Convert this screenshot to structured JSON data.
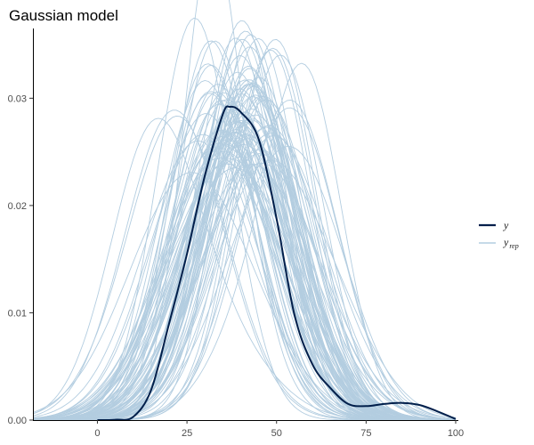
{
  "chart_data": {
    "type": "line",
    "title": "Gaussian model",
    "xlabel": "",
    "ylabel": "",
    "xlim": [
      -18,
      100
    ],
    "ylim": [
      0,
      0.0365
    ],
    "x_ticks": [
      0,
      25,
      50,
      75,
      100
    ],
    "x_tick_labels": [
      "0",
      "25",
      "50",
      "75",
      "100"
    ],
    "y_ticks": [
      0.0,
      0.01,
      0.02,
      0.03
    ],
    "y_tick_labels": [
      "0.00",
      "0.01",
      "0.02",
      "0.03"
    ],
    "grid": false,
    "legend_position": "right",
    "colors": {
      "y": "#011f4b",
      "y_rep": "#b3cde0"
    },
    "observed": {
      "name": "y",
      "x": [
        0,
        5,
        10,
        15,
        20,
        25,
        30,
        35,
        37,
        40,
        45,
        50,
        55,
        60,
        65,
        70,
        75,
        80,
        85,
        90,
        95,
        100
      ],
      "y": [
        0,
        3e-05,
        0.0003,
        0.0028,
        0.009,
        0.0155,
        0.0228,
        0.0285,
        0.0292,
        0.0287,
        0.0262,
        0.0188,
        0.0098,
        0.0052,
        0.003,
        0.0015,
        0.0013,
        0.0015,
        0.0016,
        0.0014,
        0.0008,
        0.0001
      ]
    },
    "replicated": {
      "name": "y_rep",
      "n_draws": 100,
      "mean_center": 40,
      "center_sd": 5,
      "mean_sd": 13.5,
      "sd_sd": 1.5
    },
    "legend": [
      {
        "label": "y",
        "sub": "",
        "color": "#011f4b"
      },
      {
        "label": "y",
        "sub": "rep",
        "color": "#b3cde0"
      }
    ]
  }
}
